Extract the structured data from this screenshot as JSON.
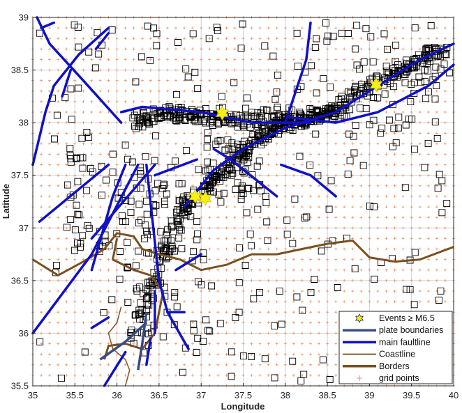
{
  "axes": {
    "xlabel": "Longitude",
    "ylabel": "Latitude",
    "xlim": [
      35,
      40
    ],
    "ylim": [
      35.5,
      39
    ],
    "xticks": [
      "35",
      "35.5",
      "36",
      "36.5",
      "37",
      "37.5",
      "38",
      "38.5",
      "39",
      "39.5",
      "40"
    ],
    "yticks": [
      "35.5",
      "36",
      "36.5",
      "37",
      "37.5",
      "38",
      "38.5",
      "39"
    ],
    "grid": true
  },
  "legend": {
    "placement": "bottom-right",
    "items": [
      {
        "label": "Events ≥ M6.5",
        "symbol": "hexagram",
        "color": "#f5f010"
      },
      {
        "label": "plate boundaries",
        "symbol": "line",
        "color": "#3a4a86"
      },
      {
        "label": "main faultline",
        "symbol": "line",
        "color": "#1010c8"
      },
      {
        "label": "Coastline",
        "symbol": "line",
        "color": "#8b5a2b"
      },
      {
        "label": "Borders",
        "symbol": "line",
        "color": "#7a5020"
      },
      {
        "label": "grid points",
        "symbol": "plus",
        "color": "#e89060"
      }
    ]
  },
  "colors": {
    "event_box": "#000000",
    "grid_point": "#e89060",
    "main_fault": "#1010c8",
    "plate_boundary": "#3a4a86",
    "coastline": "#8b5a2b",
    "border": "#7a5020",
    "big_event": "#f5f010"
  },
  "chart_data": {
    "type": "scatter",
    "big_events": [
      {
        "lon": 37.25,
        "lat": 38.09
      },
      {
        "lon": 36.93,
        "lat": 37.3
      },
      {
        "lon": 37.05,
        "lat": 37.28
      },
      {
        "lon": 39.08,
        "lat": 38.36
      }
    ],
    "grid_points": {
      "lon_start": 35.0,
      "lon_end": 40.0,
      "lat_start": 35.5,
      "lat_end": 39.0,
      "step": 0.1
    },
    "aftershock_clusters": [
      {
        "lon": [
          36.2,
          38.3
        ],
        "lat": [
          38.0,
          38.15
        ]
      },
      {
        "lon": [
          37.0,
          37.8
        ],
        "lat": [
          37.3,
          37.9
        ]
      },
      {
        "lon": [
          37.7,
          39.8
        ],
        "lat": [
          37.9,
          38.75
        ]
      },
      {
        "lon": [
          36.0,
          37.1
        ],
        "lat": [
          35.9,
          37.5
        ]
      },
      {
        "lon": [
          35.4,
          36.6
        ],
        "lat": [
          36.7,
          37.7
        ]
      }
    ],
    "main_faults": [
      [
        [
          35.08,
          37.06
        ],
        [
          35.9,
          37.6
        ]
      ],
      [
        [
          35.0,
          36.0
        ],
        [
          35.7,
          36.75
        ],
        [
          36.25,
          37.6
        ]
      ],
      [
        [
          35.7,
          36.6
        ],
        [
          35.95,
          37.3
        ],
        [
          36.1,
          37.6
        ]
      ],
      [
        [
          35.7,
          36.9
        ],
        [
          36.45,
          37.6
        ]
      ],
      [
        [
          36.35,
          37.6
        ],
        [
          36.5,
          36.5
        ],
        [
          36.6,
          36.2
        ],
        [
          36.85,
          35.85
        ]
      ],
      [
        [
          36.45,
          37.5
        ],
        [
          36.95,
          37.65
        ]
      ],
      [
        [
          37.15,
          37.75
        ],
        [
          37.35,
          37.65
        ],
        [
          37.9,
          37.3
        ]
      ],
      [
        [
          36.8,
          37.2
        ],
        [
          37.15,
          37.55
        ],
        [
          37.5,
          37.75
        ],
        [
          38.0,
          37.95
        ],
        [
          38.6,
          38.1
        ],
        [
          39.2,
          38.4
        ],
        [
          39.6,
          38.6
        ],
        [
          40.0,
          38.75
        ]
      ],
      [
        [
          37.95,
          37.6
        ],
        [
          38.3,
          37.5
        ],
        [
          38.6,
          37.3
        ]
      ],
      [
        [
          38.05,
          38.05
        ],
        [
          38.6,
          38.0
        ],
        [
          39.1,
          38.1
        ],
        [
          39.7,
          38.35
        ],
        [
          40.0,
          38.55
        ]
      ],
      [
        [
          36.05,
          38.1
        ],
        [
          36.3,
          38.15
        ],
        [
          37.0,
          38.1
        ],
        [
          37.6,
          38.0
        ],
        [
          38.0,
          38.0
        ],
        [
          38.3,
          38.0
        ]
      ],
      [
        [
          38.0,
          38.0
        ],
        [
          38.25,
          38.6
        ],
        [
          38.3,
          38.95
        ]
      ],
      [
        [
          36.05,
          38.0
        ],
        [
          35.6,
          38.4
        ],
        [
          35.2,
          38.75
        ],
        [
          35.05,
          39.0
        ]
      ],
      [
        [
          35.0,
          37.6
        ],
        [
          35.15,
          38.1
        ],
        [
          35.25,
          38.35
        ],
        [
          35.55,
          38.65
        ],
        [
          35.9,
          38.9
        ]
      ],
      [
        [
          35.1,
          38.9
        ],
        [
          35.25,
          38.95
        ]
      ],
      [
        [
          35.75,
          38.7
        ],
        [
          35.9,
          38.85
        ]
      ],
      [
        [
          35.35,
          38.25
        ],
        [
          35.45,
          38.5
        ]
      ],
      [
        [
          35.7,
          36.05
        ],
        [
          35.9,
          36.15
        ]
      ],
      [
        [
          35.85,
          35.5
        ],
        [
          36.1,
          35.82
        ]
      ],
      [
        [
          36.7,
          36.6
        ],
        [
          37.0,
          36.75
        ]
      ],
      [
        [
          36.6,
          36.2
        ],
        [
          36.8,
          36.2
        ]
      ],
      [
        [
          36.45,
          36.0
        ],
        [
          36.45,
          36.4
        ]
      ],
      [
        [
          36.4,
          35.95
        ],
        [
          36.35,
          35.7
        ]
      ]
    ],
    "plate_boundaries": [
      [
        [
          35.8,
          35.75
        ],
        [
          36.1,
          35.92
        ],
        [
          36.35,
          36.1
        ]
      ],
      [
        [
          36.35,
          36.2
        ],
        [
          36.3,
          35.9
        ],
        [
          36.25,
          35.65
        ]
      ]
    ],
    "coastline": [
      [
        36.05,
        36.25
      ],
      [
        36.0,
        36.1
      ],
      [
        35.9,
        36.0
      ],
      [
        35.95,
        35.85
      ],
      [
        36.1,
        35.75
      ],
      [
        36.15,
        35.65
      ],
      [
        36.1,
        35.5
      ]
    ],
    "borders": [
      [
        [
          35.0,
          36.7
        ],
        [
          35.3,
          36.55
        ],
        [
          35.6,
          36.68
        ],
        [
          35.85,
          36.8
        ],
        [
          36.0,
          36.95
        ],
        [
          36.2,
          36.92
        ],
        [
          36.3,
          36.8
        ],
        [
          36.5,
          36.75
        ],
        [
          36.75,
          36.7
        ],
        [
          37.0,
          36.6
        ],
        [
          37.3,
          36.65
        ],
        [
          37.6,
          36.75
        ],
        [
          37.9,
          36.75
        ],
        [
          38.2,
          36.8
        ],
        [
          38.5,
          36.85
        ],
        [
          38.8,
          36.88
        ],
        [
          39.0,
          36.72
        ],
        [
          39.3,
          36.68
        ],
        [
          39.6,
          36.7
        ],
        [
          40.0,
          36.82
        ]
      ],
      [
        [
          36.0,
          36.9
        ],
        [
          35.95,
          36.7
        ],
        [
          36.2,
          36.6
        ],
        [
          36.4,
          36.55
        ],
        [
          36.55,
          36.4
        ],
        [
          36.5,
          36.2
        ],
        [
          36.45,
          36.0
        ],
        [
          36.3,
          35.85
        ],
        [
          36.1,
          35.9
        ],
        [
          35.9,
          35.88
        ],
        [
          35.85,
          35.75
        ]
      ]
    ]
  }
}
